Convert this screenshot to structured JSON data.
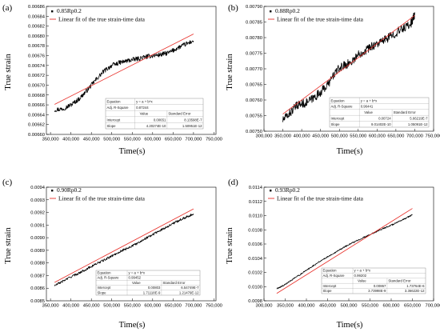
{
  "chart_data": [
    {
      "type": "line",
      "panel_label": "(a)",
      "xlabel": "Time(s)",
      "ylabel": "True strain",
      "x_ticks": [
        "350,000",
        "400,000",
        "450,000",
        "500,000",
        "550,000",
        "600,000",
        "650,000",
        "700,000",
        "750,000"
      ],
      "y_ticks": [
        "0.00660",
        "0.00662",
        "0.00664",
        "0.00666",
        "0.00668",
        "0.00670",
        "0.00672",
        "0.00674",
        "0.00676",
        "0.00678",
        "0.00680",
        "0.00682",
        "0.00684",
        "0.00686"
      ],
      "xlim": [
        340000,
        755000
      ],
      "ylim": [
        0.0066,
        0.00686
      ],
      "legend": {
        "data_label": "0.85Rp0.2",
        "fit_label": "Linear fit of the true strain-time data"
      },
      "stats": {
        "equation_label": "Equation",
        "equation": "y = a + b*x",
        "r2_label": "Adj. R-Square",
        "r2": "0.87244",
        "value_header": "Value",
        "se_header": "Standard Error",
        "intercept_label": "Intercept",
        "intercept": "0.00651",
        "intercept_se": "8.13598E-7",
        "slope_label": "Slope",
        "slope": "4.20274E-10",
        "slope_se": "1.50951E-12"
      },
      "series": [
        {
          "name": "0.85Rp0.2",
          "x": [
            360000,
            380000,
            400000,
            420000,
            440000,
            460000,
            480000,
            500000,
            520000,
            540000,
            560000,
            580000,
            600000,
            620000,
            640000,
            660000,
            680000,
            700000
          ],
          "y": [
            0.00665,
            0.006652,
            0.00666,
            0.006672,
            0.00669,
            0.00671,
            0.006728,
            0.00674,
            0.006746,
            0.00675,
            0.006753,
            0.006757,
            0.00676,
            0.006762,
            0.006766,
            0.006775,
            0.006783,
            0.00679
          ]
        },
        {
          "name": "Linear fit of the true strain-time data",
          "x": [
            360000,
            700000
          ],
          "y": [
            0.006661,
            0.006804
          ]
        }
      ]
    },
    {
      "type": "line",
      "panel_label": "(b)",
      "xlabel": "Time(s)",
      "ylabel": "True strain",
      "x_ticks": [
        "300,000",
        "350,000",
        "400,000",
        "450,000",
        "500,000",
        "550,000",
        "600,000",
        "650,000",
        "700,000",
        "750,000"
      ],
      "y_ticks": [
        "0.00750",
        "0.00755",
        "0.00760",
        "0.00765",
        "0.00770",
        "0.00775",
        "0.00780",
        "0.00785",
        "0.00790"
      ],
      "xlim": [
        300000,
        750000
      ],
      "ylim": [
        0.0075,
        0.0079
      ],
      "legend": {
        "data_label": "0.88Rp0.2",
        "fit_label": "Linear fit of the true strain-time data"
      },
      "stats": {
        "equation_label": "Equation",
        "equation": "y = a + b*x",
        "r2_label": "Adj. R-Square",
        "r2": "0.96441",
        "value_header": "Value",
        "se_header": "Standard Error",
        "intercept_label": "Intercept",
        "intercept": "0.00724",
        "intercept_se": "5.66219E-7",
        "slope_label": "Slope",
        "slope": "9.01402E-10",
        "slope_se": "1.05091E-12"
      },
      "series": [
        {
          "name": "0.88Rp0.2",
          "x": [
            350000,
            370000,
            390000,
            410000,
            430000,
            450000,
            470000,
            490000,
            510000,
            530000,
            550000,
            570000,
            590000,
            610000,
            630000,
            650000,
            670000,
            690000,
            700000
          ],
          "y": [
            0.007535,
            0.00756,
            0.007585,
            0.00759,
            0.007605,
            0.007625,
            0.00765,
            0.00769,
            0.00771,
            0.00772,
            0.007745,
            0.00776,
            0.007775,
            0.007785,
            0.0078,
            0.007815,
            0.00783,
            0.007845,
            0.007875
          ]
        },
        {
          "name": "Linear fit of the true strain-time data",
          "x": [
            350000,
            700000
          ],
          "y": [
            0.007555,
            0.007871
          ]
        }
      ]
    },
    {
      "type": "line",
      "panel_label": "(c)",
      "xlabel": "Time(s)",
      "ylabel": "True strain",
      "x_ticks": [
        "350,000",
        "400,000",
        "450,000",
        "500,000",
        "550,000",
        "600,000",
        "650,000",
        "700,000",
        "750,000"
      ],
      "y_ticks": [
        "0.0085",
        "0.0086",
        "0.0087",
        "0.0088",
        "0.0089",
        "0.0090",
        "0.0091",
        "0.0092",
        "0.0093",
        "0.0094"
      ],
      "xlim": [
        340000,
        755000
      ],
      "ylim": [
        0.0085,
        0.0094
      ],
      "legend": {
        "data_label": "0.90Rp0.2",
        "fit_label": "Linear fit of the true strain-time data"
      },
      "stats": {
        "equation_label": "Equation",
        "equation": "y = a + b*x",
        "r2_label": "Adj. R-Square",
        "r2": "0.99452",
        "value_header": "Value",
        "se_header": "Standard Error",
        "intercept_label": "Intercept",
        "intercept": "0.00803",
        "intercept_se": "6.54749E-7",
        "slope_label": "Slope",
        "slope": "1.71118E-9",
        "slope_se": "1.21479E-12"
      },
      "series": [
        {
          "name": "0.90Rp0.2",
          "x": [
            360000,
            380000,
            400000,
            420000,
            440000,
            460000,
            480000,
            500000,
            520000,
            540000,
            560000,
            580000,
            600000,
            620000,
            640000,
            660000,
            680000,
            700000
          ],
          "y": [
            0.00862,
            0.008655,
            0.00869,
            0.00872,
            0.008755,
            0.00879,
            0.00882,
            0.008855,
            0.00889,
            0.00892,
            0.00895,
            0.00899,
            0.009025,
            0.00906,
            0.009095,
            0.00913,
            0.00916,
            0.00919
          ]
        },
        {
          "name": "Linear fit of the true strain-time data",
          "x": [
            360000,
            700000
          ],
          "y": [
            0.008646,
            0.009228
          ]
        }
      ]
    },
    {
      "type": "line",
      "panel_label": "(d)",
      "xlabel": "Time(s)",
      "ylabel": "True strain",
      "x_ticks": [
        "300,000",
        "350,000",
        "400,000",
        "450,000",
        "500,000",
        "550,000",
        "600,000",
        "650,000",
        "700,000"
      ],
      "y_ticks": [
        "0.0098",
        "0.0100",
        "0.0102",
        "0.0104",
        "0.0106",
        "0.0108",
        "0.0110",
        "0.0112",
        "0.0114"
      ],
      "xlim": [
        300000,
        700000
      ],
      "ylim": [
        0.0098,
        0.0114
      ],
      "legend": {
        "data_label": "0.93Rp0.2",
        "fit_label": "Linear fit of the true strain-time data"
      },
      "stats": {
        "equation_label": "Equation",
        "equation": "y = a + b*x",
        "r2_label": "Adj. R-Square",
        "r2": "0.99202",
        "value_header": "Value",
        "se_header": "Standard Error",
        "intercept_label": "Intercept",
        "intercept": "0.00867",
        "intercept_se": "1.73764E-6",
        "slope_label": "Slope",
        "slope": "3.73998E-9",
        "slope_se": "3.36622E-12"
      },
      "series": [
        {
          "name": "0.93Rp0.2",
          "x": [
            330000,
            350000,
            370000,
            390000,
            410000,
            430000,
            450000,
            470000,
            490000,
            510000,
            530000,
            550000,
            570000,
            590000,
            610000,
            630000,
            650000
          ],
          "y": [
            0.00997,
            0.01003,
            0.01011,
            0.01019,
            0.01027,
            0.01035,
            0.01042,
            0.01049,
            0.01056,
            0.01062,
            0.01068,
            0.01073,
            0.01079,
            0.01084,
            0.01089,
            0.01095,
            0.01101
          ]
        },
        {
          "name": "Linear fit of the true strain-time data",
          "x": [
            330000,
            650000
          ],
          "y": [
            0.009904,
            0.011101
          ]
        }
      ]
    }
  ]
}
